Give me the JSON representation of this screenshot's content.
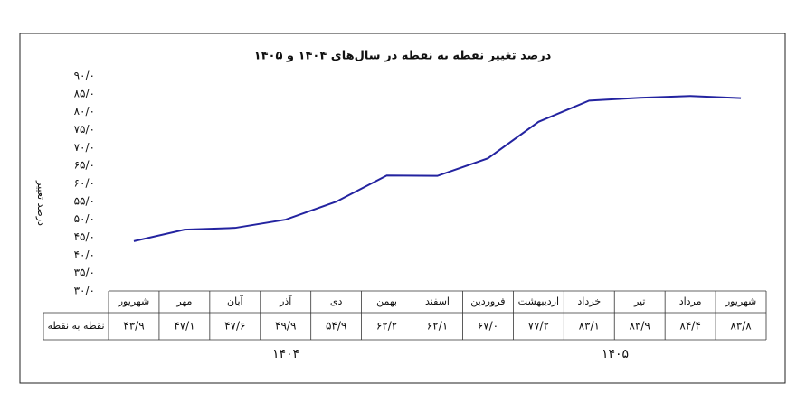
{
  "chart_data": {
    "type": "line",
    "title": "درصد تغییر نقطه به نقطه در سال‌های ۱۴۰۴ و ۱۴۰۵",
    "y_label": "درصد تغییر",
    "categories": [
      "شهریور",
      "مهر",
      "آبان",
      "آذر",
      "دی",
      "بهمن",
      "اسفند",
      "فروردین",
      "اردیبهشت",
      "خرداد",
      "تیر",
      "مرداد",
      "شهریور"
    ],
    "series": [
      {
        "name": "نقطه به نقطه",
        "color": "#2323a0",
        "values": [
          43.9,
          47.1,
          47.6,
          49.9,
          54.9,
          62.2,
          62.1,
          67.0,
          77.2,
          83.1,
          83.9,
          84.4,
          83.8
        ],
        "value_labels": [
          "۴۳/۹",
          "۴۷/۱",
          "۴۷/۶",
          "۴۹/۹",
          "۵۴/۹",
          "۶۲/۲",
          "۶۲/۱",
          "۶۷/۰",
          "۷۷/۲",
          "۸۳/۱",
          "۸۳/۹",
          "۸۴/۴",
          "۸۳/۸"
        ]
      }
    ],
    "year_groups": [
      "۱۴۰۴",
      "۱۴۰۵"
    ],
    "ylim": [
      30,
      90
    ],
    "yticks": [
      {
        "value": 30,
        "label": "۳۰/۰"
      },
      {
        "value": 35,
        "label": "۳۵/۰"
      },
      {
        "value": 40,
        "label": "۴۰/۰"
      },
      {
        "value": 45,
        "label": "۴۵/۰"
      },
      {
        "value": 50,
        "label": "۵۰/۰"
      },
      {
        "value": 55,
        "label": "۵۵/۰"
      },
      {
        "value": 60,
        "label": "۶۰/۰"
      },
      {
        "value": 65,
        "label": "۶۵/۰"
      },
      {
        "value": 70,
        "label": "۷۰/۰"
      },
      {
        "value": 75,
        "label": "۷۵/۰"
      },
      {
        "value": 80,
        "label": "۸۰/۰"
      },
      {
        "value": 85,
        "label": "۸۵/۰"
      },
      {
        "value": 90,
        "label": "۹۰/۰"
      }
    ],
    "grid": false
  }
}
